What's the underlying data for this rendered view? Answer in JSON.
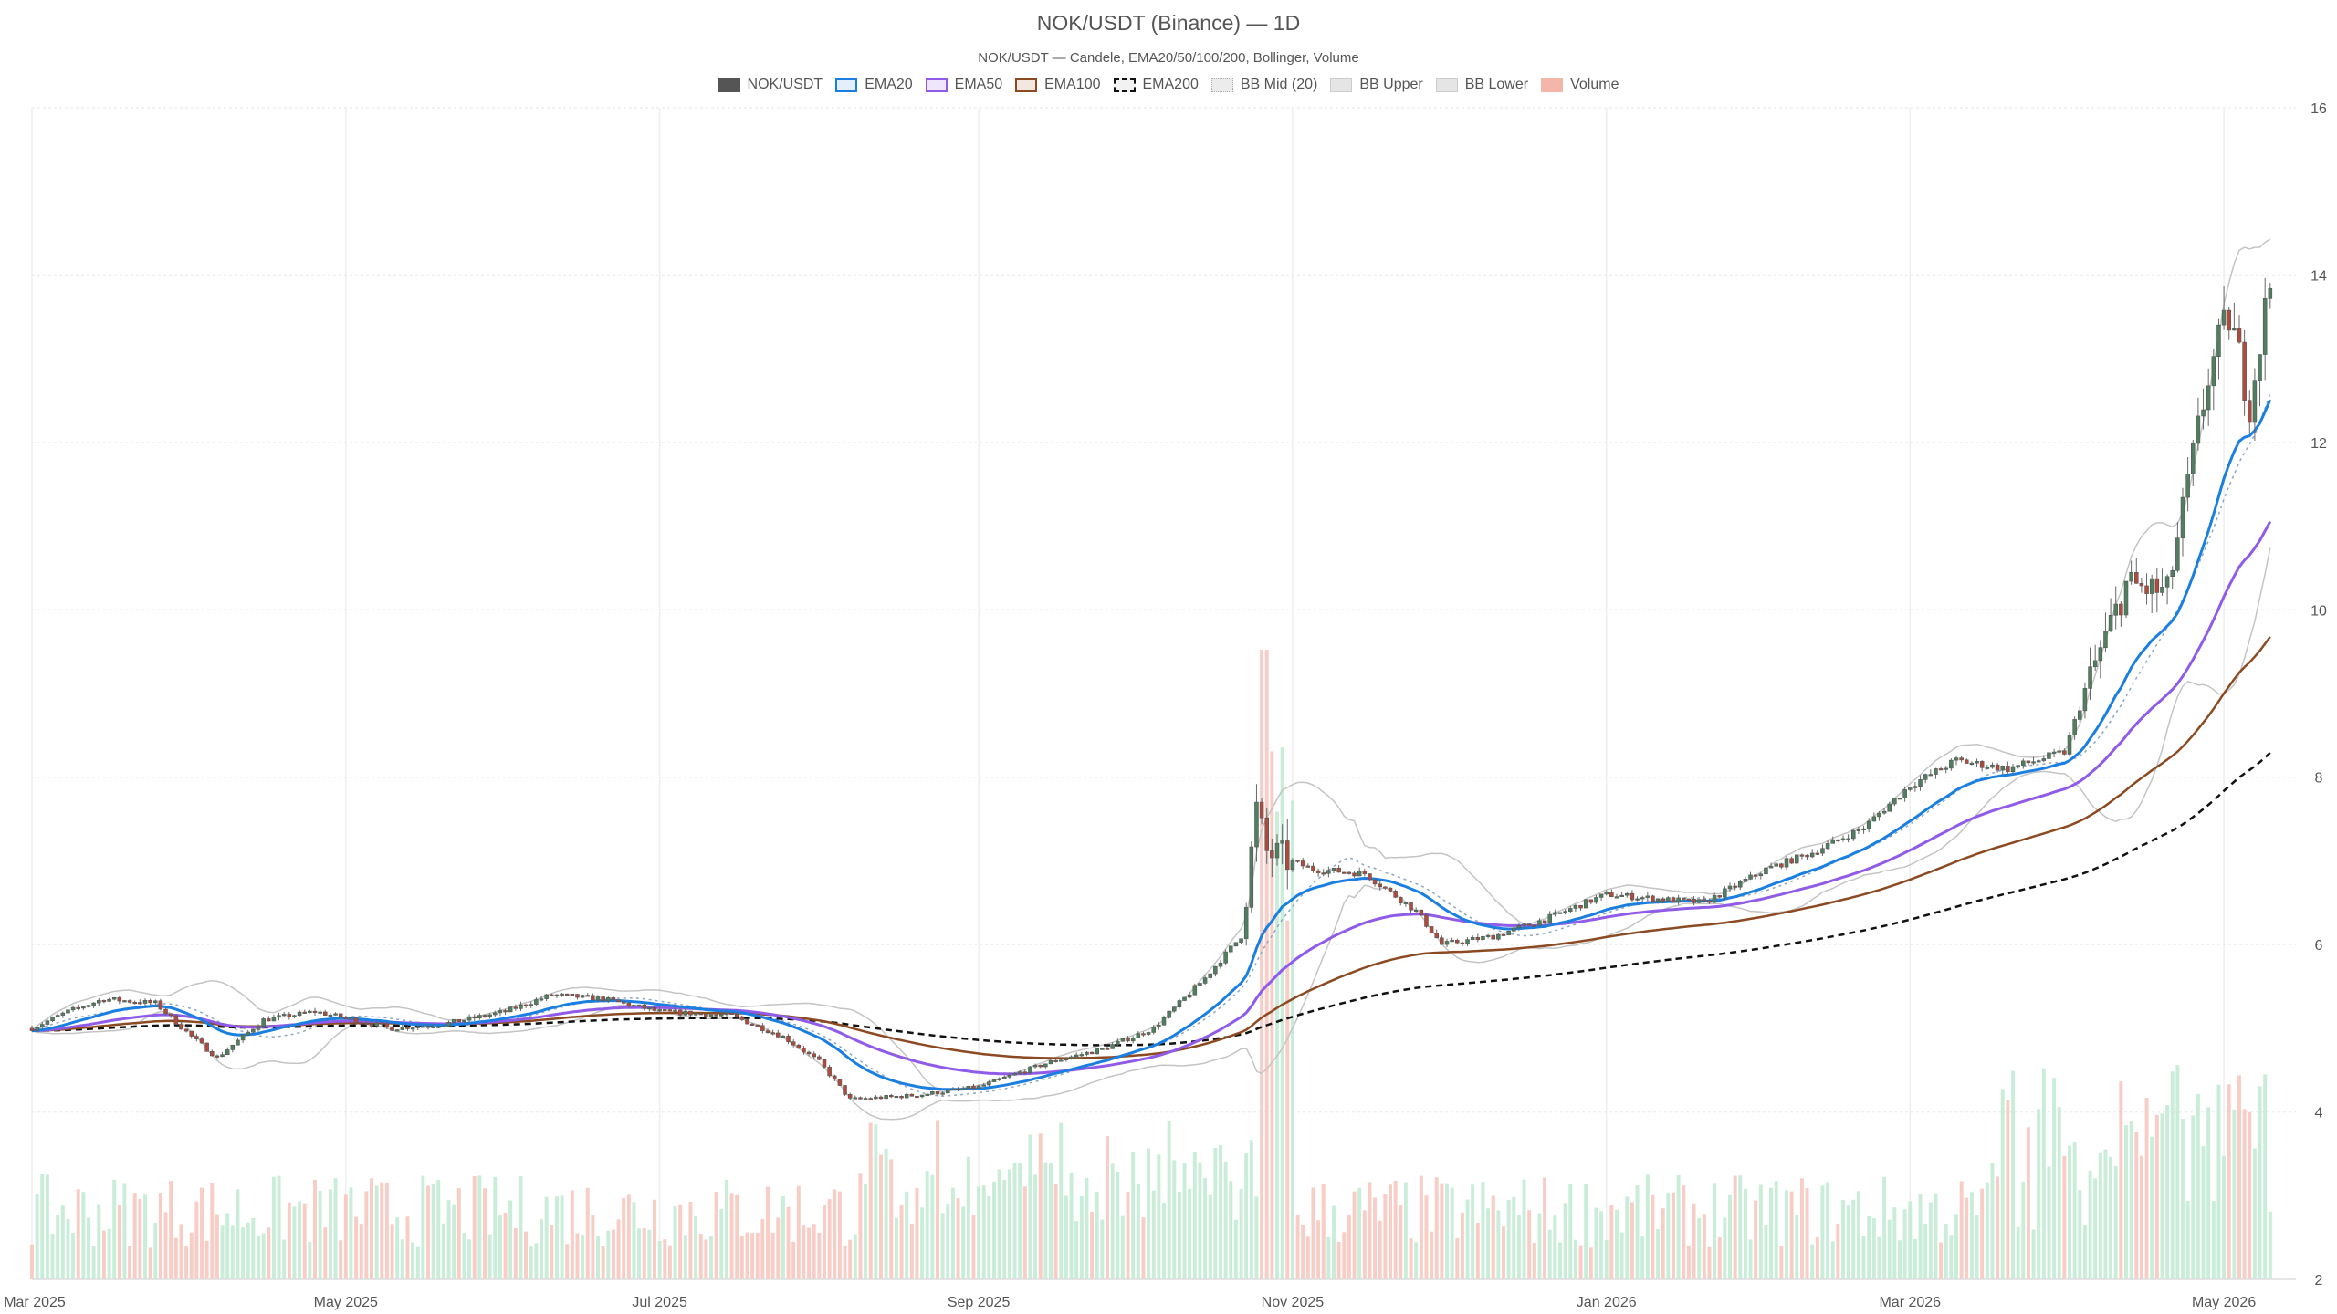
{
  "chart_data": {
    "type": "candlestick",
    "title": "NOK/USDT (Binance) — 1D",
    "subtitle": "NOK/USDT — Candele, EMA20/50/100/200, Bollinger, Volume",
    "legend": {
      "placement": "top-center",
      "items": [
        {
          "label": "NOK/USDT",
          "color": "#555555",
          "style": "fill"
        },
        {
          "label": "EMA20",
          "color": "#1a7fe0",
          "style": "line"
        },
        {
          "label": "EMA50",
          "color": "#8f5be8",
          "style": "line"
        },
        {
          "label": "EMA100",
          "color": "#8b4a22",
          "style": "line"
        },
        {
          "label": "EMA200",
          "color": "#111111",
          "style": "dashed"
        },
        {
          "label": "BB Mid (20)",
          "color": "#aaaaaa",
          "style": "dotted"
        },
        {
          "label": "BB Upper",
          "color": "#bbbbbb",
          "style": "line"
        },
        {
          "label": "BB Lower",
          "color": "#bbbbbb",
          "style": "line"
        },
        {
          "label": "Volume",
          "color": "#f4b6a8",
          "style": "fill"
        }
      ]
    },
    "x_ticks": [
      "Mar 2025",
      "May 2025",
      "Jul 2025",
      "Sep 2025",
      "Nov 2025",
      "Jan 2026",
      "Mar 2026",
      "May 2026"
    ],
    "x_tick_dates": [
      "2025-03-01",
      "2025-05-01",
      "2025-07-01",
      "2025-09-01",
      "2025-11-01",
      "2026-01-01",
      "2026-03-01",
      "2026-05-01"
    ],
    "x_range": [
      "2025-03-01",
      "2026-05-15"
    ],
    "y_ticks": [
      2,
      4,
      6,
      8,
      10,
      12,
      14,
      16
    ],
    "ylim": [
      2,
      16
    ],
    "y_axis_side": "right",
    "grid": true,
    "colors": {
      "up": "#4f7f5e",
      "down": "#b04a3c",
      "vol_up": "#bfead2",
      "vol_down": "#f6c4bb"
    },
    "price_anchors": [
      [
        "2025-03-01",
        5.0
      ],
      [
        "2025-03-08",
        5.2
      ],
      [
        "2025-03-15",
        5.35
      ],
      [
        "2025-03-25",
        5.3
      ],
      [
        "2025-04-01",
        4.9
      ],
      [
        "2025-04-06",
        4.65
      ],
      [
        "2025-04-15",
        5.1
      ],
      [
        "2025-04-25",
        5.2
      ],
      [
        "2025-05-10",
        5.0
      ],
      [
        "2025-05-20",
        5.05
      ],
      [
        "2025-06-01",
        5.2
      ],
      [
        "2025-06-10",
        5.4
      ],
      [
        "2025-06-20",
        5.35
      ],
      [
        "2025-07-01",
        5.2
      ],
      [
        "2025-07-15",
        5.15
      ],
      [
        "2025-07-25",
        4.9
      ],
      [
        "2025-08-01",
        4.6
      ],
      [
        "2025-08-07",
        4.15
      ],
      [
        "2025-08-20",
        4.2
      ],
      [
        "2025-09-01",
        4.3
      ],
      [
        "2025-09-15",
        4.6
      ],
      [
        "2025-09-25",
        4.75
      ],
      [
        "2025-10-05",
        5.0
      ],
      [
        "2025-10-15",
        5.6
      ],
      [
        "2025-10-22",
        6.1
      ],
      [
        "2025-10-25",
        7.6
      ],
      [
        "2025-10-27",
        7.1
      ],
      [
        "2025-11-05",
        6.9
      ],
      [
        "2025-11-15",
        6.85
      ],
      [
        "2025-11-25",
        6.4
      ],
      [
        "2025-11-30",
        6.0
      ],
      [
        "2025-12-10",
        6.1
      ],
      [
        "2025-12-20",
        6.3
      ],
      [
        "2026-01-01",
        6.6
      ],
      [
        "2026-01-10",
        6.55
      ],
      [
        "2026-01-20",
        6.5
      ],
      [
        "2026-02-01",
        6.9
      ],
      [
        "2026-02-10",
        7.1
      ],
      [
        "2026-02-20",
        7.4
      ],
      [
        "2026-03-01",
        7.9
      ],
      [
        "2026-03-10",
        8.2
      ],
      [
        "2026-03-20",
        8.1
      ],
      [
        "2026-03-31",
        8.3
      ],
      [
        "2026-04-05",
        9.2
      ],
      [
        "2026-04-12",
        10.3
      ],
      [
        "2026-04-20",
        10.2
      ],
      [
        "2026-04-25",
        11.8
      ],
      [
        "2026-04-28",
        12.8
      ],
      [
        "2026-05-02",
        13.5
      ],
      [
        "2026-05-06",
        12.5
      ],
      [
        "2026-05-10",
        13.9
      ]
    ]
  }
}
